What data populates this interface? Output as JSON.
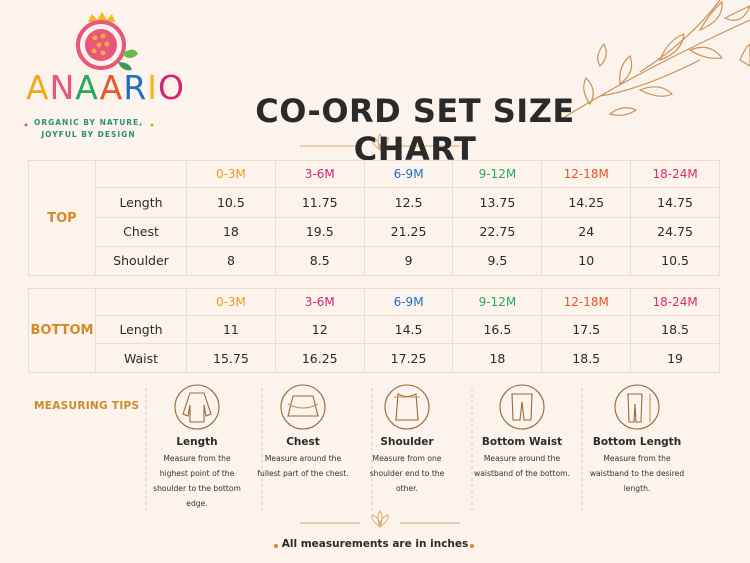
{
  "brand": {
    "name": "ANAARIO",
    "tagline": [
      "ORGANIC BY NATURE,",
      "JOYFUL BY DESIGN"
    ]
  },
  "title": "CO-ORD SET SIZE CHART",
  "size_colors": [
    "#e8a020",
    "#d6246e",
    "#1e6fc0",
    "#2aa85a",
    "#e8562a",
    "#e02a6e"
  ],
  "tables": [
    {
      "section": "TOP",
      "sizes": [
        "0-3M",
        "3-6M",
        "6-9M",
        "9-12M",
        "12-18M",
        "18-24M"
      ],
      "rows": [
        {
          "label": "Length",
          "values": [
            10.5,
            11.75,
            12.5,
            13.75,
            14.25,
            14.75
          ]
        },
        {
          "label": "Chest",
          "values": [
            18,
            19.5,
            21.25,
            22.75,
            24,
            24.75
          ]
        },
        {
          "label": "Shoulder",
          "values": [
            8,
            8.5,
            9,
            9.5,
            10,
            10.5
          ]
        }
      ]
    },
    {
      "section": "BOTTOM",
      "sizes": [
        "0-3M",
        "3-6M",
        "6-9M",
        "9-12M",
        "12-18M",
        "18-24M"
      ],
      "rows": [
        {
          "label": "Length",
          "values": [
            11,
            12,
            14.5,
            16.5,
            17.5,
            18.5
          ]
        },
        {
          "label": "Waist",
          "values": [
            15.75,
            16.25,
            17.25,
            18,
            18.5,
            19
          ]
        }
      ]
    }
  ],
  "tips": {
    "heading": "MEASURING TIPS",
    "items": [
      {
        "title": "Length",
        "description": "Measure from the highest point of the shoulder to the bottom edge."
      },
      {
        "title": "Chest",
        "description": "Measure around the fullest part of the chest."
      },
      {
        "title": "Shoulder",
        "description": "Measure from one shoulder end to the other."
      },
      {
        "title": "Bottom Waist",
        "description": "Measure around the waistband of the bottom."
      },
      {
        "title": "Bottom Length",
        "description": "Measure from the waistband to the desired length."
      }
    ]
  },
  "footer": "All measurements are in inches"
}
